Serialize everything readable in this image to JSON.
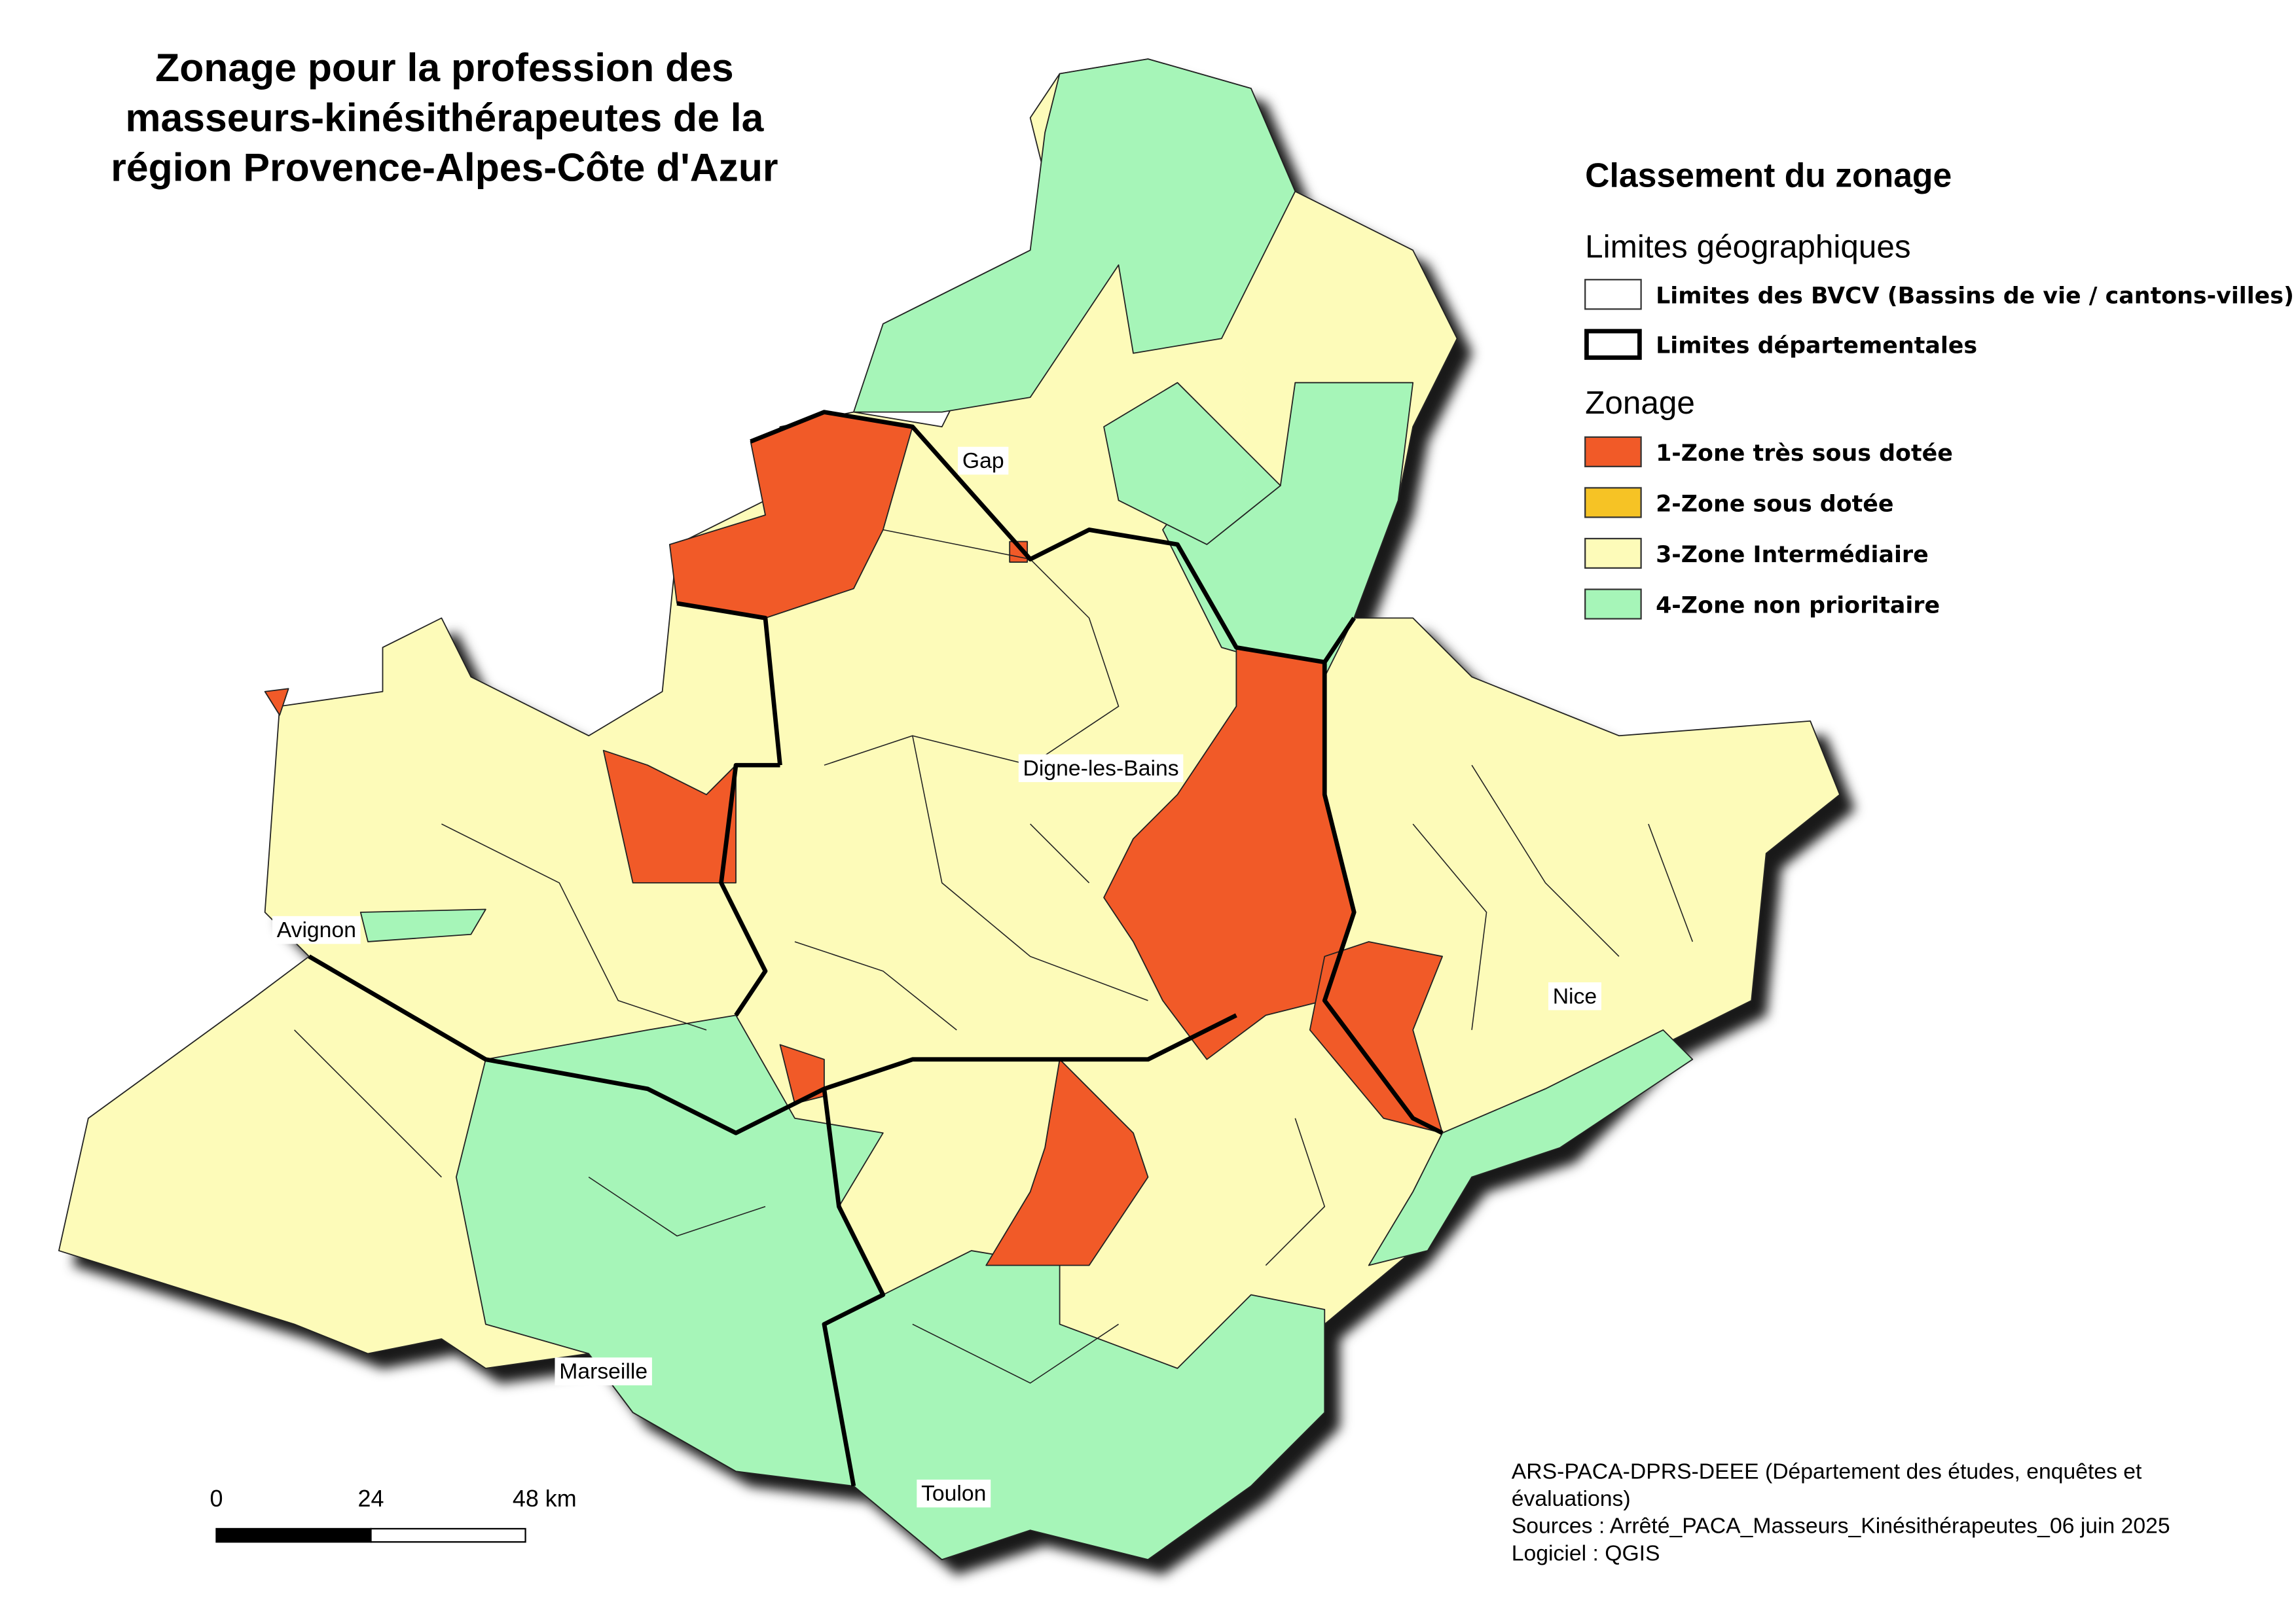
{
  "title": {
    "lines": [
      "Zonage pour la profession des",
      "masseurs-kinésithérapeutes de la",
      "région Provence-Alpes-Côte d'Azur"
    ]
  },
  "legend": {
    "title": "Classement du zonage",
    "groups": [
      {
        "heading": "Limites géographiques",
        "items": [
          {
            "label": "Limites des BVCV (Bassins de vie / cantons-villes)"
          },
          {
            "label": "Limites départementales"
          }
        ]
      },
      {
        "heading": "Zonage",
        "items": [
          {
            "label": "1-Zone très sous dotée",
            "color": "#f15a28"
          },
          {
            "label": "2-Zone sous dotée",
            "color": "#f6c325"
          },
          {
            "label": "3-Zone Intermédiaire",
            "color": "#fdfbb9"
          },
          {
            "label": "4-Zone non prioritaire",
            "color": "#a6f5b8"
          }
        ]
      }
    ]
  },
  "cities": [
    "Gap",
    "Digne-les-Bains",
    "Avignon",
    "Nice",
    "Marseille",
    "Toulon"
  ],
  "scale_bar": {
    "labels": [
      "0",
      "24",
      "48 km"
    ]
  },
  "credits": [
    "ARS-PACA-DPRS-DEEE (Département des études, enquêtes et",
    "évaluations)",
    "Sources : Arrêté_PACA_Masseurs_Kinésithérapeutes_06 juin 2025",
    "Logiciel : QGIS"
  ]
}
